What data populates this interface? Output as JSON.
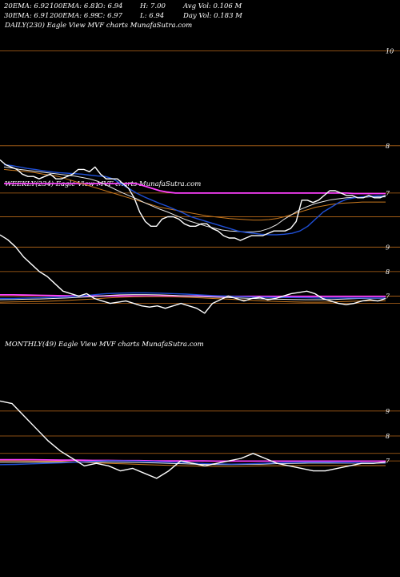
{
  "header": {
    "row1": [
      {
        "key": "ema20",
        "text": "20EMA: 6.92"
      },
      {
        "key": "ema100",
        "text": "100EMA: 6.81"
      },
      {
        "key": "open",
        "text": "O: 6.94"
      },
      {
        "key": "high",
        "text": "H: 7.00"
      },
      {
        "key": "avgvol",
        "text": "Avg Vol: 0.106  M"
      }
    ],
    "row2": [
      {
        "key": "ema30",
        "text": "30EMA: 6.91"
      },
      {
        "key": "ema200",
        "text": "200EMA: 6.99"
      },
      {
        "key": "close",
        "text": "C: 6.97"
      },
      {
        "key": "low",
        "text": "L: 6.94"
      },
      {
        "key": "dayvol",
        "text": "Day Vol: 0.183  M"
      }
    ]
  },
  "panels": {
    "daily": {
      "label": "DAILY(230) Eagle  View  MVF charts MunafaSutra.com"
    },
    "weekly": {
      "label": "WEEKLY(234) Eagle  View  MVF charts MunafaSutra.com"
    },
    "monthly": {
      "label": "MONTHLY(49) Eagle  View  MVF charts MunafaSutra.com"
    }
  },
  "colors": {
    "background": "#000000",
    "price": "#ffffff",
    "ema_short": "#1f4fd6",
    "ema_mid": "#e8e8e8",
    "ema_long": "#c8781e",
    "ema_longest": "#ff40ff",
    "level_line": "#b8681a"
  },
  "chart_data": [
    {
      "type": "line",
      "id": "daily",
      "ylim": [
        10.4,
        6.0
      ],
      "levels": [
        8,
        7,
        6.5,
        10
      ],
      "level_labels": [
        "8",
        "7",
        "10"
      ],
      "series": [
        {
          "role": "price",
          "values": [
            7.7,
            7.6,
            7.55,
            7.5,
            7.4,
            7.35,
            7.35,
            7.3,
            7.35,
            7.4,
            7.3,
            7.3,
            7.35,
            7.4,
            7.5,
            7.5,
            7.45,
            7.55,
            7.4,
            7.3,
            7.3,
            7.3,
            7.2,
            7.1,
            6.9,
            6.6,
            6.4,
            6.3,
            6.3,
            6.45,
            6.5,
            6.5,
            6.45,
            6.35,
            6.3,
            6.3,
            6.35,
            6.35,
            6.25,
            6.2,
            6.1,
            6.05,
            6.05,
            6.0,
            6.05,
            6.1,
            6.1,
            6.1,
            6.15,
            6.2,
            6.2,
            6.2,
            6.25,
            6.4,
            6.85,
            6.85,
            6.8,
            6.85,
            6.95,
            7.05,
            7.05,
            7.0,
            6.95,
            6.95,
            6.9,
            6.9,
            6.95,
            6.9,
            6.9,
            6.95
          ]
        },
        {
          "role": "ema_short",
          "values": [
            7.6,
            7.58,
            7.55,
            7.52,
            7.5,
            7.47,
            7.45,
            7.43,
            7.42,
            7.41,
            7.4,
            7.38,
            7.36,
            7.35,
            7.3,
            7.2,
            7.1,
            7.0,
            6.92,
            6.85,
            6.78,
            6.72,
            6.65,
            6.58,
            6.5,
            6.45,
            6.4,
            6.35,
            6.3,
            6.25,
            6.2,
            6.17,
            6.15,
            6.13,
            6.12,
            6.12,
            6.13,
            6.15,
            6.2,
            6.3,
            6.45,
            6.6,
            6.7,
            6.8,
            6.87,
            6.9,
            6.92,
            6.93,
            6.94,
            6.94
          ]
        },
        {
          "role": "ema_mid",
          "values": [
            7.55,
            7.53,
            7.5,
            7.48,
            7.46,
            7.44,
            7.42,
            7.4,
            7.38,
            7.36,
            7.33,
            7.3,
            7.25,
            7.18,
            7.1,
            7.02,
            6.95,
            6.88,
            6.8,
            6.73,
            6.66,
            6.6,
            6.53,
            6.46,
            6.4,
            6.35,
            6.3,
            6.26,
            6.22,
            6.2,
            6.19,
            6.18,
            6.18,
            6.2,
            6.25,
            6.33,
            6.45,
            6.55,
            6.65,
            6.72,
            6.78,
            6.82,
            6.86,
            6.88,
            6.9,
            6.91,
            6.91,
            6.92,
            6.92,
            6.92
          ]
        },
        {
          "role": "ema_long",
          "values": [
            7.5,
            7.48,
            7.47,
            7.45,
            7.43,
            7.4,
            7.38,
            7.35,
            7.3,
            7.25,
            7.2,
            7.15,
            7.1,
            7.05,
            7.0,
            6.95,
            6.9,
            6.85,
            6.8,
            6.75,
            6.7,
            6.67,
            6.64,
            6.61,
            6.58,
            6.55,
            6.52,
            6.5,
            6.48,
            6.46,
            6.45,
            6.44,
            6.43,
            6.43,
            6.44,
            6.46,
            6.5,
            6.55,
            6.6,
            6.65,
            6.7,
            6.73,
            6.76,
            6.78,
            6.79,
            6.8,
            6.81,
            6.81,
            6.81,
            6.81
          ]
        },
        {
          "role": "ema_longest",
          "values": [
            7.2,
            7.2,
            7.2,
            7.2,
            7.2,
            7.2,
            7.2,
            7.2,
            7.2,
            7.2,
            7.2,
            7.2,
            7.2,
            7.2,
            7.2,
            7.2,
            7.2,
            7.2,
            7.15,
            7.1,
            7.05,
            7.02,
            7.0,
            7.0,
            7.0,
            7.0,
            7.0,
            7.0,
            7.0,
            7.0,
            7.0,
            7.0,
            7.0,
            7.0,
            7.0,
            7.0,
            7.0,
            7.0,
            7.0,
            7.0,
            7.0,
            7.0,
            7.0,
            7.0,
            7.0,
            6.99,
            6.99,
            6.99,
            6.99,
            6.99
          ]
        }
      ]
    },
    {
      "type": "line",
      "id": "weekly",
      "ylim": [
        9.6,
        6.0
      ],
      "levels": [
        9,
        8,
        7,
        6.7
      ],
      "level_labels": [
        "9",
        "8",
        "7"
      ],
      "series": [
        {
          "role": "price",
          "values": [
            9.5,
            9.3,
            9.0,
            8.6,
            8.3,
            8.0,
            7.8,
            7.5,
            7.2,
            7.1,
            7.0,
            7.1,
            6.9,
            6.8,
            6.7,
            6.75,
            6.8,
            6.7,
            6.6,
            6.55,
            6.6,
            6.5,
            6.6,
            6.7,
            6.6,
            6.5,
            6.3,
            6.7,
            6.85,
            7.0,
            6.9,
            6.8,
            6.9,
            6.95,
            6.85,
            6.9,
            7.0,
            7.1,
            7.15,
            7.2,
            7.1,
            6.9,
            6.8,
            6.7,
            6.65,
            6.7,
            6.8,
            6.85,
            6.8,
            6.9
          ]
        },
        {
          "role": "ema_short",
          "values": [
            6.9,
            6.9,
            6.92,
            6.93,
            6.95,
            6.97,
            7.0,
            7.05,
            7.1,
            7.12,
            7.13,
            7.13,
            7.12,
            7.1,
            7.08,
            7.05,
            7.02,
            7.0,
            6.98,
            6.96,
            6.95,
            6.94,
            6.94,
            6.93,
            6.92,
            6.92,
            6.92,
            6.92,
            6.92,
            6.92
          ]
        },
        {
          "role": "ema_mid",
          "values": [
            6.85,
            6.86,
            6.87,
            6.88,
            6.9,
            6.92,
            6.95,
            6.98,
            7.02,
            7.05,
            7.06,
            7.06,
            7.05,
            7.03,
            7.0,
            6.98,
            6.96,
            6.94,
            6.92,
            6.9,
            6.88,
            6.87,
            6.86,
            6.85,
            6.85,
            6.86,
            6.88,
            6.9,
            6.91,
            6.91
          ]
        },
        {
          "role": "ema_long",
          "values": [
            6.75,
            6.76,
            6.77,
            6.78,
            6.8,
            6.82,
            6.85,
            6.88,
            6.92,
            6.95,
            6.97,
            6.98,
            6.98,
            6.97,
            6.95,
            6.93,
            6.9,
            6.88,
            6.85,
            6.82,
            6.8,
            6.78,
            6.76,
            6.75,
            6.75,
            6.76,
            6.78,
            6.8,
            6.81,
            6.81
          ]
        },
        {
          "role": "ema_longest",
          "values": [
            7.05,
            7.05,
            7.04,
            7.03,
            7.02,
            7.01,
            7.0,
            7.0,
            7.0,
            7.0,
            7.0,
            7.0,
            7.0,
            7.0,
            7.0,
            7.0,
            6.99,
            6.99,
            6.99,
            6.99,
            6.99,
            6.99,
            6.99,
            6.99,
            6.99,
            6.99,
            6.99,
            6.99,
            6.99,
            6.99
          ]
        }
      ]
    },
    {
      "type": "line",
      "id": "monthly",
      "ylim": [
        9.8,
        6.2
      ],
      "levels": [
        9,
        8,
        7.3,
        7
      ],
      "level_labels": [
        "9",
        "8",
        "7"
      ],
      "series": [
        {
          "role": "price",
          "values": [
            9.4,
            9.3,
            8.8,
            8.3,
            7.8,
            7.4,
            7.1,
            6.8,
            6.9,
            6.8,
            6.6,
            6.7,
            6.5,
            6.3,
            6.6,
            7.0,
            6.9,
            6.8,
            6.9,
            7.0,
            7.1,
            7.3,
            7.1,
            6.9,
            6.8,
            6.7,
            6.6,
            6.6,
            6.7,
            6.8,
            6.9,
            6.9,
            6.95
          ]
        },
        {
          "role": "ema_short",
          "values": [
            6.85,
            6.86,
            6.88,
            6.9,
            6.92,
            6.95,
            6.98,
            7.0,
            7.0,
            6.99,
            6.97,
            6.95,
            6.93,
            6.9,
            6.88,
            6.87,
            6.88,
            6.9,
            6.92,
            6.94,
            6.95,
            6.95,
            6.94,
            6.93,
            6.92,
            6.92
          ]
        },
        {
          "role": "ema_mid",
          "values": [
            6.95,
            6.95,
            6.95,
            6.95,
            6.95,
            6.95,
            6.95,
            6.95,
            6.94,
            6.93,
            6.92,
            6.9,
            6.88,
            6.86,
            6.85,
            6.85,
            6.86,
            6.87,
            6.89,
            6.9,
            6.91,
            6.91,
            6.91,
            6.91,
            6.91,
            6.91
          ]
        },
        {
          "role": "ema_long",
          "values": [
            7.0,
            7.0,
            6.99,
            6.98,
            6.97,
            6.95,
            6.93,
            6.9,
            6.88,
            6.86,
            6.84,
            6.82,
            6.8,
            6.79,
            6.78,
            6.78,
            6.79,
            6.8,
            6.8,
            6.81,
            6.81,
            6.81,
            6.81,
            6.81,
            6.81,
            6.81
          ]
        },
        {
          "role": "ema_longest",
          "values": [
            7.05,
            7.05,
            7.05,
            7.04,
            7.03,
            7.03,
            7.02,
            7.02,
            7.01,
            7.01,
            7.0,
            7.0,
            7.0,
            7.0,
            6.99,
            6.99,
            6.99,
            6.99,
            6.99,
            6.99,
            6.99,
            6.99,
            6.99,
            6.99,
            6.99,
            6.99
          ]
        }
      ]
    }
  ]
}
